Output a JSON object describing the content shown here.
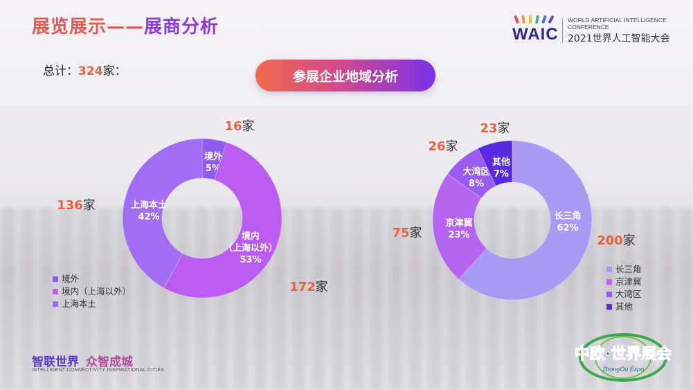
{
  "header": {
    "title_main": "展览展示——",
    "title_accent": "展商分析",
    "total_prefix": "总计：",
    "total_value": "324",
    "total_suffix": "家：",
    "section_pill": "参展企业地域分析"
  },
  "logo": {
    "word": "WAIC",
    "english": "WORLD ARTIFICIAL INTELLIGENCE CONFERENCE",
    "chinese": "2021世界人工智能大会"
  },
  "footer": {
    "slogan_a": "智联世界",
    "slogan_b": "众智成城",
    "slogan_en": "INTELLIGENT CONNECTIVITY  INSPIRATIONAL CITIES",
    "expo_cn": "中欧·世界展会",
    "expo_en": "ZhongOu Expo"
  },
  "colors": {
    "title": "#e05a54",
    "accent": "#8a3cd6",
    "count": "#e8613f"
  },
  "chart_data": [
    {
      "type": "pie",
      "donut": true,
      "slices": [
        {
          "label": "境外",
          "pct_label": "5%",
          "count_label": "16家",
          "value": 16,
          "color": "#8e5cf0"
        },
        {
          "label": "境内\n（上海以外）",
          "pct_label": "53%",
          "count_label": "172家",
          "value": 172,
          "color": "#bb5cf0"
        },
        {
          "label": "上海本土",
          "pct_label": "42%",
          "count_label": "136家",
          "value": 136,
          "color": "#a06ef2"
        }
      ],
      "legend": [
        "境外",
        "境内（上海以外）",
        "上海本土"
      ],
      "legend_position": "bottom-left"
    },
    {
      "type": "pie",
      "donut": true,
      "slices": [
        {
          "label": "长三角",
          "pct_label": "62%",
          "count_label": "200家",
          "value": 200,
          "color": "#a99bf3"
        },
        {
          "label": "京津冀",
          "pct_label": "23%",
          "count_label": "75家",
          "value": 75,
          "color": "#b464ee"
        },
        {
          "label": "大湾区",
          "pct_label": "8%",
          "count_label": "26家",
          "value": 26,
          "color": "#9a5cf0"
        },
        {
          "label": "其他",
          "pct_label": "7%",
          "count_label": "23家",
          "value": 23,
          "color": "#5b2ae0"
        }
      ],
      "legend": [
        "长三角",
        "京津冀",
        "大湾区",
        "其他"
      ],
      "legend_position": "bottom-right"
    }
  ]
}
